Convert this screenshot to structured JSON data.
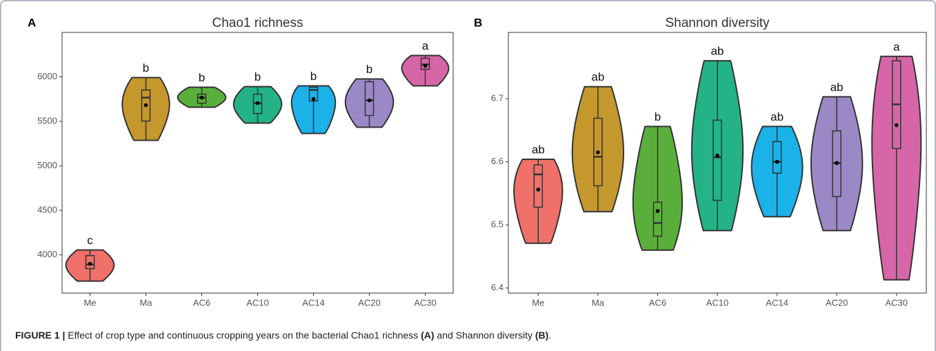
{
  "chart_data": [
    {
      "type": "violin",
      "panel": "A",
      "title": "Chao1 richness",
      "categories": [
        "Me",
        "Ma",
        "AC6",
        "AC10",
        "AC14",
        "AC20",
        "AC30"
      ],
      "colors": [
        "#f0706a",
        "#c5982e",
        "#5aaf3c",
        "#24b386",
        "#1ab2e8",
        "#9a89c6",
        "#d766a8"
      ],
      "min": [
        3705,
        5287,
        5659,
        5481,
        5364,
        5434,
        5899
      ],
      "q1": [
        3845,
        5504,
        5705,
        5589,
        5729,
        5566,
        6085
      ],
      "median": [
        3891,
        5767,
        5767,
        5705,
        5853,
        5736,
        6140
      ],
      "q3": [
        3992,
        5853,
        5806,
        5806,
        5884,
        5946,
        6209
      ],
      "max": [
        4054,
        5992,
        5884,
        5891,
        5899,
        5977,
        6240
      ],
      "mean": [
        3899,
        5682,
        5767,
        5705,
        5752,
        5736,
        6124
      ],
      "letters": [
        "c",
        "b",
        "b",
        "b",
        "b",
        "b",
        "a"
      ],
      "ylim": [
        3570,
        6500
      ],
      "yticks": [
        4000,
        4500,
        5000,
        5500,
        6000
      ],
      "grid": false
    },
    {
      "type": "violin",
      "panel": "B",
      "title": "Shannon diversity",
      "categories": [
        "Me",
        "Ma",
        "AC6",
        "AC10",
        "AC14",
        "AC20",
        "AC30"
      ],
      "colors": [
        "#f0706a",
        "#c5982e",
        "#5aaf3c",
        "#24b386",
        "#1ab2e8",
        "#9a89c6",
        "#d766a8"
      ],
      "min": [
        6.471,
        6.521,
        6.46,
        6.491,
        6.513,
        6.491,
        6.413
      ],
      "q1": [
        6.528,
        6.562,
        6.482,
        6.539,
        6.582,
        6.545,
        6.621
      ],
      "median": [
        6.58,
        6.608,
        6.503,
        6.607,
        6.6,
        6.598,
        6.691
      ],
      "q3": [
        6.595,
        6.669,
        6.536,
        6.666,
        6.632,
        6.649,
        6.76
      ],
      "max": [
        6.604,
        6.719,
        6.656,
        6.76,
        6.656,
        6.703,
        6.767
      ],
      "mean": [
        6.556,
        6.615,
        6.522,
        6.61,
        6.6,
        6.598,
        6.658
      ],
      "letters": [
        "ab",
        "ab",
        "b",
        "ab",
        "ab",
        "ab",
        "a"
      ],
      "ylim": [
        6.392,
        6.805
      ],
      "yticks": [
        6.4,
        6.5,
        6.6,
        6.7
      ],
      "grid": false
    }
  ],
  "caption": {
    "label": "FIGURE 1 |",
    "text1": "Effect of crop type and continuous cropping years on the bacterial Chao1 richness",
    "ref1": "(A)",
    "text2": "and Shannon diversity",
    "ref2": "(B)",
    "end": "."
  }
}
